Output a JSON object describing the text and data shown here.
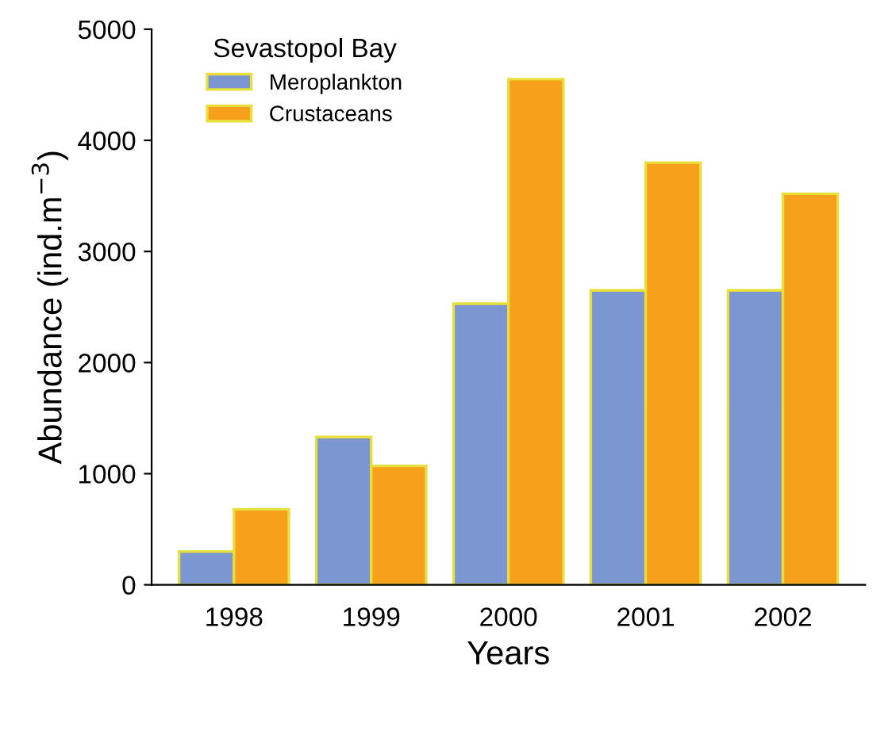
{
  "chart_data": {
    "type": "bar",
    "xlabel": "Years",
    "ylabel": "Abundance (ind.m$^{−3}$)",
    "legend_title": "Sevastopol Bay",
    "categories": [
      "1998",
      "1999",
      "2000",
      "2001",
      "2002"
    ],
    "series": [
      {
        "name": "Meroplankton",
        "color": "#7b96d0",
        "values": [
          300,
          1330,
          2530,
          2650,
          2650
        ]
      },
      {
        "name": "Crustaceans",
        "color": "#f7a01b",
        "values": [
          680,
          1070,
          4550,
          3800,
          3520
        ]
      }
    ],
    "ylim": [
      0,
      5000
    ],
    "yticks": [
      0,
      1000,
      2000,
      3000,
      4000,
      5000
    ],
    "grid": false,
    "legend": "top left"
  }
}
